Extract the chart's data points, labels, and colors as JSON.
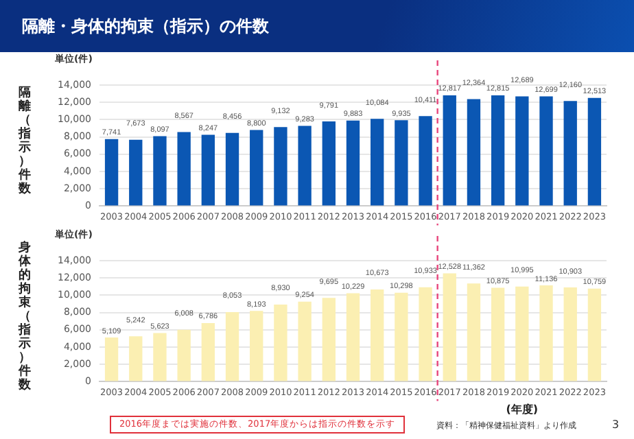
{
  "chart_data": [
    {
      "type": "bar",
      "title": "隔離・身体的拘束（指示）の件数",
      "ylabel": "隔離（指示）件数",
      "annotations": [
        "単位(件)"
      ],
      "categories": [
        "2003",
        "2004",
        "2005",
        "2006",
        "2007",
        "2008",
        "2009",
        "2010",
        "2011",
        "2012",
        "2013",
        "2014",
        "2015",
        "2016",
        "2017",
        "2018",
        "2019",
        "2020",
        "2021",
        "2022",
        "2023"
      ],
      "values": [
        7741,
        7673,
        8097,
        8567,
        8247,
        8456,
        8800,
        9132,
        9283,
        9791,
        9883,
        10084,
        9935,
        10411,
        12817,
        12364,
        12815,
        12689,
        12699,
        12160,
        12513
      ],
      "value_labels": [
        "7,741",
        "7,673",
        "8,097",
        "8,567",
        "8,247",
        "8,456",
        "8,800",
        "9,132",
        "9,283",
        "9,791",
        "9,883",
        "10,084",
        "9,935",
        "10,411",
        "12,817",
        "12,364",
        "12,815",
        "12,689",
        "12,699",
        "12,160",
        "12,513"
      ],
      "color": "#0b57b3",
      "ylim": [
        0,
        14000
      ],
      "yticks": [
        0,
        {
          "value": 2000,
          "label": "2,000"
        },
        {
          "value": 4000,
          "label": "4,000"
        },
        {
          "value": 6000,
          "label": "6,000"
        },
        {
          "value": 8000,
          "label": "8,000"
        },
        {
          "value": 10000,
          "label": "10,000"
        },
        {
          "value": 12000,
          "label": "12,000"
        },
        {
          "value": 14000,
          "label": "14,000"
        }
      ],
      "grid": "y",
      "legend": false,
      "ref_lines": [
        {
          "axis": "x",
          "value": "2017",
          "color": "#e8467c",
          "line_style": "dashed"
        }
      ]
    },
    {
      "type": "bar",
      "ylabel": "身体的拘束（指示）件数",
      "xlabel": "(年度)",
      "annotations": [
        "単位(件)",
        "2016年度までは実施の件数、2017年度からは指示の件数を示す",
        "資料：「精神保健福祉資料」より作成",
        "3"
      ],
      "categories": [
        "2003",
        "2004",
        "2005",
        "2006",
        "2007",
        "2008",
        "2009",
        "2010",
        "2011",
        "2012",
        "2013",
        "2014",
        "2015",
        "2016",
        "2017",
        "2018",
        "2019",
        "2020",
        "2021",
        "2022",
        "2023"
      ],
      "values": [
        5109,
        5242,
        5623,
        6008,
        6786,
        8053,
        8193,
        8930,
        9254,
        9695,
        10229,
        10673,
        10298,
        10933,
        12528,
        11362,
        10875,
        10995,
        11136,
        10903,
        10759
      ],
      "value_labels": [
        "5,109",
        "5,242",
        "5,623",
        "6,008",
        "6,786",
        "8,053",
        "8,193",
        "8,930",
        "9,254",
        "9,695",
        "10,229",
        "10,673",
        "10,298",
        "10,933",
        "12,528",
        "11,362",
        "10,875",
        "10,995",
        "11,136",
        "10,903",
        "10,759"
      ],
      "color": "#fbefb2",
      "ylim": [
        0,
        14000
      ],
      "yticks": [
        0,
        {
          "value": 2000,
          "label": "2,000"
        },
        {
          "value": 4000,
          "label": "4,000"
        },
        {
          "value": 6000,
          "label": "6,000"
        },
        {
          "value": 8000,
          "label": "8,000"
        },
        {
          "value": 10000,
          "label": "10,000"
        },
        {
          "value": 12000,
          "label": "12,000"
        },
        {
          "value": 14000,
          "label": "14,000"
        }
      ],
      "grid": "y",
      "legend": false,
      "ref_lines": [
        {
          "axis": "x",
          "value": "2017",
          "color": "#e8467c",
          "line_style": "dashed"
        }
      ]
    }
  ]
}
